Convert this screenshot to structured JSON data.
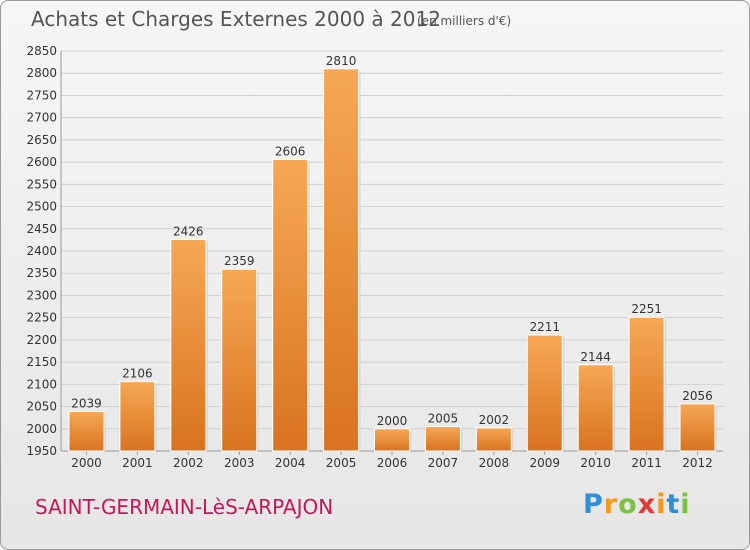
{
  "header": {
    "title": "Achats et Charges Externes 2000 à 2012",
    "unit": "(en milliers d'€)"
  },
  "footer": {
    "commune": "SAINT-GERMAIN-LèS-ARPAJON",
    "logo_text": "Proxiti"
  },
  "colors": {
    "bar_light": "#f6a855",
    "bar_dark": "#d9731f",
    "grid": "#d0d0d0",
    "commune_text": "#c2185b"
  },
  "chart_data": {
    "type": "bar",
    "title": "Achats et Charges Externes 2000 à 2012",
    "subtitle": "(en milliers d'€)",
    "xlabel": "",
    "ylabel": "",
    "categories": [
      "2000",
      "2001",
      "2002",
      "2003",
      "2004",
      "2005",
      "2006",
      "2007",
      "2008",
      "2009",
      "2010",
      "2011",
      "2012"
    ],
    "values": [
      2039,
      2106,
      2426,
      2359,
      2606,
      2810,
      2000,
      2005,
      2002,
      2211,
      2144,
      2251,
      2056
    ],
    "ylim": [
      1950,
      2850
    ],
    "yticks": [
      1950,
      2000,
      2050,
      2100,
      2150,
      2200,
      2250,
      2300,
      2350,
      2400,
      2450,
      2500,
      2550,
      2600,
      2650,
      2700,
      2750,
      2800,
      2850
    ],
    "grid": true,
    "data_labels": true
  }
}
